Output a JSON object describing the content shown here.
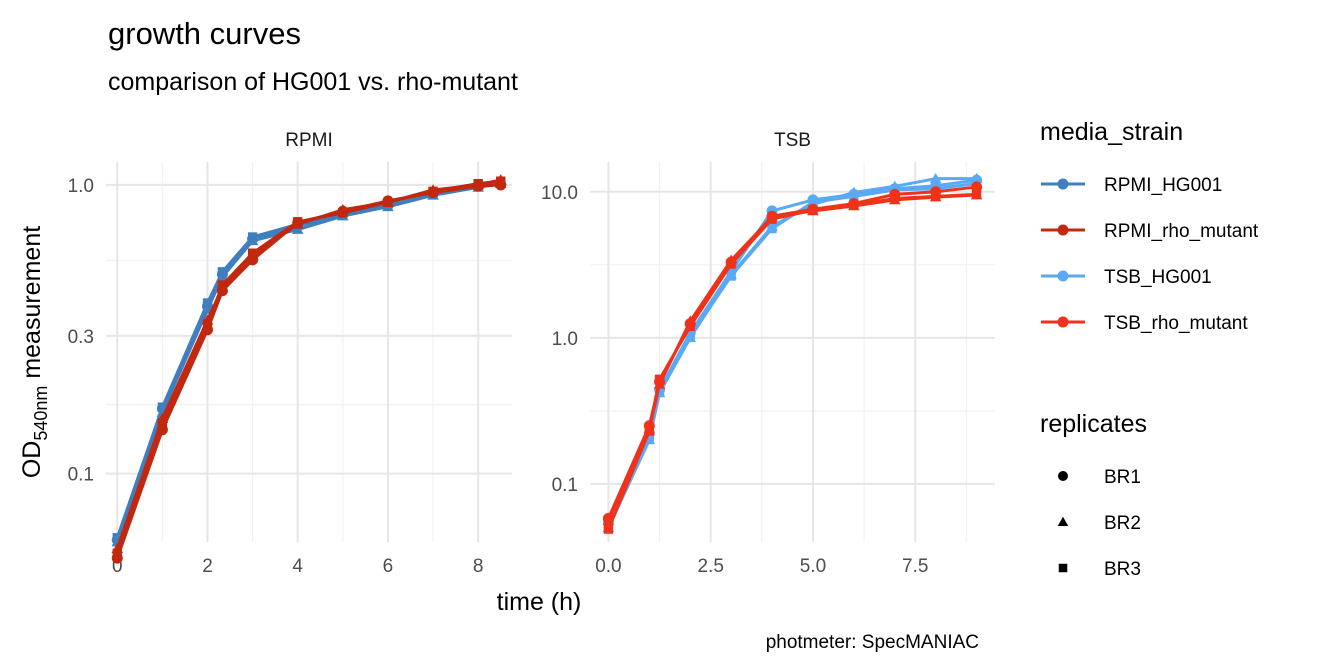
{
  "chart_data": {
    "type": "line",
    "title": "growth curves",
    "subtitle": "comparison of HG001 vs. rho-mutant",
    "xlabel": "time (h)",
    "ylabel_main": "OD",
    "ylabel_sub": "540nm",
    "ylabel_rest": " measurement",
    "caption": "photmeter: SpecMANIAC",
    "y_scale": "log10",
    "grid": true,
    "legend_position": "right",
    "color_legend": {
      "title": "media_strain",
      "items": [
        {
          "name": "RPMI_HG001",
          "color": "#3f7fbf"
        },
        {
          "name": "RPMI_rho_mutant",
          "color": "#c1280f"
        },
        {
          "name": "TSB_HG001",
          "color": "#5aa9f5"
        },
        {
          "name": "TSB_rho_mutant",
          "color": "#f0321a"
        }
      ]
    },
    "shape_legend": {
      "title": "replicates",
      "items": [
        {
          "name": "BR1",
          "shape": "circle"
        },
        {
          "name": "BR2",
          "shape": "triangle"
        },
        {
          "name": "BR3",
          "shape": "square"
        }
      ]
    },
    "panels": [
      {
        "strip": "RPMI",
        "xlim": [
          -0.25,
          8.75
        ],
        "ylim": [
          0.058,
          1.2
        ],
        "x_ticks": [
          0,
          2,
          4,
          6,
          8
        ],
        "x_tick_labels": [
          "0",
          "2",
          "4",
          "6",
          "8"
        ],
        "y_ticks": [
          0.1,
          0.3,
          1.0
        ],
        "y_tick_labels": [
          "0.1",
          "0.3",
          "1.0"
        ],
        "series": [
          {
            "group": "RPMI_HG001",
            "replicate": "BR1",
            "x": [
              0,
              1,
              2,
              2.33,
              3,
              4,
              5,
              6,
              7,
              8,
              8.5
            ],
            "y": [
              0.059,
              0.168,
              0.38,
              0.49,
              0.65,
              0.72,
              0.79,
              0.85,
              0.93,
              0.99,
              1.0
            ]
          },
          {
            "group": "RPMI_HG001",
            "replicate": "BR2",
            "x": [
              0,
              1,
              2,
              2.33,
              3,
              4,
              5,
              6,
              7,
              8,
              8.5
            ],
            "y": [
              0.058,
              0.163,
              0.37,
              0.48,
              0.64,
              0.7,
              0.78,
              0.84,
              0.92,
              0.98,
              1.01
            ]
          },
          {
            "group": "RPMI_HG001",
            "replicate": "BR3",
            "x": [
              0,
              1,
              2,
              2.33,
              3,
              4,
              5,
              6,
              7,
              8,
              8.5
            ],
            "y": [
              0.06,
              0.17,
              0.39,
              0.5,
              0.66,
              0.73,
              0.8,
              0.86,
              0.94,
              1.0,
              1.02
            ]
          },
          {
            "group": "RPMI_rho_mutant",
            "replicate": "BR1",
            "x": [
              0,
              1,
              2,
              2.33,
              3,
              4,
              5,
              6,
              7,
              8,
              8.5
            ],
            "y": [
              0.051,
              0.142,
              0.315,
              0.43,
              0.55,
              0.74,
              0.81,
              0.88,
              0.94,
              0.99,
              1.0
            ]
          },
          {
            "group": "RPMI_rho_mutant",
            "replicate": "BR2",
            "x": [
              0,
              1,
              2,
              2.33,
              3,
              4,
              5,
              6,
              7,
              8,
              8.5
            ],
            "y": [
              0.055,
              0.155,
              0.34,
              0.44,
              0.57,
              0.73,
              0.82,
              0.87,
              0.96,
              1.0,
              1.04
            ]
          },
          {
            "group": "RPMI_rho_mutant",
            "replicate": "BR3",
            "x": [
              0,
              1,
              2,
              2.33,
              3,
              4,
              5,
              6,
              7,
              8,
              8.5
            ],
            "y": [
              0.053,
              0.15,
              0.33,
              0.45,
              0.58,
              0.745,
              0.8,
              0.87,
              0.95,
              1.01,
              1.03
            ]
          }
        ]
      },
      {
        "strip": "TSB",
        "xlim": [
          -0.45,
          9.45
        ],
        "ylim": [
          0.04,
          16
        ],
        "x_ticks": [
          0,
          2.5,
          5,
          7.5
        ],
        "x_tick_labels": [
          "0.0",
          "2.5",
          "5.0",
          "7.5"
        ],
        "y_ticks": [
          0.1,
          1.0,
          10.0
        ],
        "y_tick_labels": [
          "0.1",
          "1.0",
          "10.0"
        ],
        "series": [
          {
            "group": "TSB_HG001",
            "replicate": "BR1",
            "x": [
              0,
              1,
              1.25,
              2,
              3,
              4,
              5,
              6,
              7,
              8,
              9
            ],
            "y": [
              0.055,
              0.22,
              0.44,
              1.08,
              2.85,
              7.4,
              8.8,
              9.6,
              10.5,
              11.0,
              12.0
            ]
          },
          {
            "group": "TSB_HG001",
            "replicate": "BR2",
            "x": [
              0,
              1,
              1.25,
              2,
              3,
              4,
              5,
              6,
              7,
              8,
              9
            ],
            "y": [
              0.05,
              0.2,
              0.42,
              1.0,
              2.7,
              5.8,
              8.2,
              9.9,
              10.9,
              12.3,
              12.3
            ]
          },
          {
            "group": "TSB_HG001",
            "replicate": "BR3",
            "x": [
              0,
              1,
              1.25,
              2,
              3,
              4,
              5,
              6,
              7,
              8,
              9
            ],
            "y": [
              0.052,
              0.21,
              0.43,
              1.02,
              2.65,
              5.6,
              8.5,
              9.3,
              10.3,
              10.5,
              11.4
            ]
          },
          {
            "group": "TSB_rho_mutant",
            "replicate": "BR1",
            "x": [
              0,
              1,
              1.25,
              2,
              3,
              4,
              5,
              6,
              7,
              8,
              9
            ],
            "y": [
              0.058,
              0.25,
              0.5,
              1.25,
              3.3,
              6.8,
              7.6,
              8.3,
              9.6,
              10.0,
              10.8
            ]
          },
          {
            "group": "TSB_rho_mutant",
            "replicate": "BR2",
            "x": [
              0,
              1,
              1.25,
              2,
              3,
              4,
              5,
              6,
              7,
              8,
              9
            ],
            "y": [
              0.056,
              0.24,
              0.48,
              1.3,
              3.4,
              6.7,
              7.4,
              8.0,
              8.8,
              9.2,
              9.5
            ]
          },
          {
            "group": "TSB_rho_mutant",
            "replicate": "BR3",
            "x": [
              0,
              1,
              1.25,
              2,
              3,
              4,
              5,
              6,
              7,
              8,
              9
            ],
            "y": [
              0.049,
              0.23,
              0.52,
              1.2,
              3.2,
              6.5,
              7.5,
              8.1,
              9.0,
              9.3,
              9.6
            ]
          }
        ]
      }
    ]
  }
}
